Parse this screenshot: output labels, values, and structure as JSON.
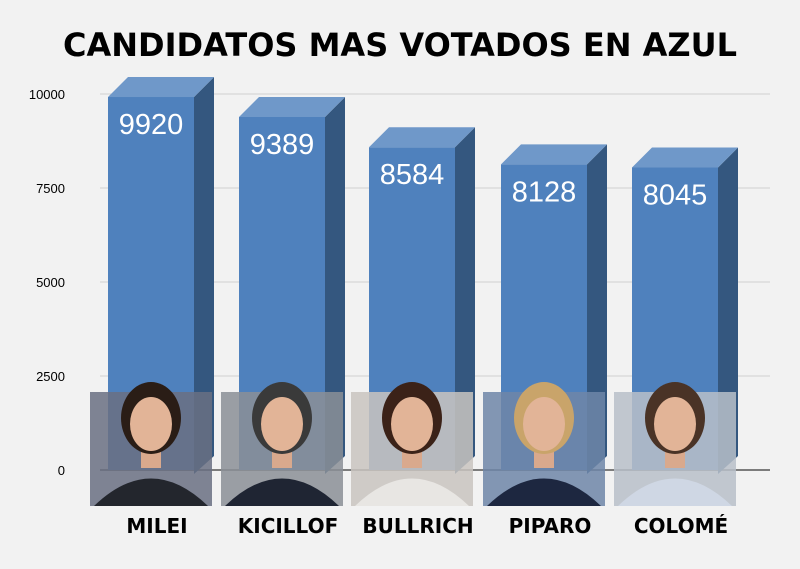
{
  "chart_data": {
    "type": "bar",
    "title": "CANDIDATOS MAS VOTADOS EN AZUL",
    "categories": [
      "MILEI",
      "KICILLOF",
      "BULLRICH",
      "PIPARO",
      "COLOMÉ"
    ],
    "values": [
      9920,
      9389,
      8584,
      8128,
      8045
    ],
    "y_ticks": [
      "0",
      "2500",
      "5000",
      "7500",
      "10000"
    ],
    "ylim": [
      0,
      10000
    ],
    "grid": true,
    "legend": "none",
    "style": "3d-bars with candidate photos at base"
  },
  "colors": {
    "background": "#f2f2f2",
    "bar_front": "#4f81bd",
    "bar_side": "#34577f",
    "bar_top": "#6f98c9",
    "value_label": "#ffffff",
    "gridline": "#d0d0d0",
    "title": "#000000"
  },
  "icons": [
    "portrait-photo"
  ]
}
